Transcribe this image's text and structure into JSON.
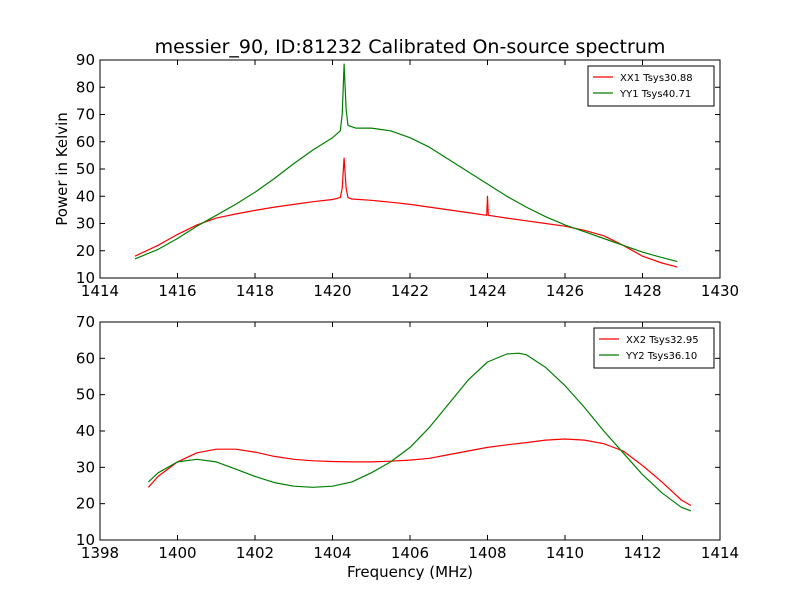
{
  "chart_data": [
    {
      "type": "line",
      "title": "messier_90, ID:81232 Calibrated On-source spectrum",
      "xlabel": "",
      "ylabel": "Power in Kelvin",
      "xlim": [
        1414,
        1430
      ],
      "ylim": [
        10,
        90
      ],
      "xticks": [
        1414,
        1416,
        1418,
        1420,
        1422,
        1424,
        1426,
        1428,
        1430
      ],
      "yticks": [
        10,
        20,
        30,
        40,
        50,
        60,
        70,
        80,
        90
      ],
      "legend_position": "top-right",
      "grid": false,
      "series": [
        {
          "name": "XX1 Tsys30.88",
          "color": "#ff0000",
          "x": [
            1414.9,
            1415.5,
            1416.0,
            1416.5,
            1417.0,
            1417.5,
            1418.0,
            1418.5,
            1419.0,
            1419.5,
            1420.0,
            1420.2,
            1420.25,
            1420.3,
            1420.35,
            1420.4,
            1420.5,
            1421.0,
            1421.5,
            1422.0,
            1422.5,
            1423.0,
            1423.5,
            1423.98,
            1424.0,
            1424.02,
            1424.5,
            1425.0,
            1425.5,
            1426.0,
            1426.5,
            1427.0,
            1427.5,
            1428.0,
            1428.5,
            1428.9
          ],
          "y": [
            18,
            22,
            26,
            29.5,
            32,
            33.5,
            34.8,
            36,
            37,
            38,
            38.8,
            39.5,
            43,
            54,
            43,
            39.5,
            39,
            38.5,
            37.8,
            37,
            36,
            35,
            34,
            33,
            40,
            33,
            32,
            31,
            30,
            29,
            27.5,
            25.5,
            22,
            18,
            15.5,
            14
          ]
        },
        {
          "name": "YY1 Tsys40.71",
          "color": "#008000",
          "x": [
            1414.9,
            1415.5,
            1416.0,
            1416.5,
            1417.0,
            1417.5,
            1418.0,
            1418.5,
            1419.0,
            1419.5,
            1420.0,
            1420.2,
            1420.25,
            1420.3,
            1420.35,
            1420.4,
            1420.6,
            1421.0,
            1421.5,
            1422.0,
            1422.5,
            1423.0,
            1423.5,
            1424.0,
            1424.5,
            1425.0,
            1425.5,
            1426.0,
            1426.5,
            1427.0,
            1427.5,
            1428.0,
            1428.5,
            1428.9
          ],
          "y": [
            17,
            20.5,
            24.5,
            29,
            33,
            37,
            41.5,
            46.5,
            52,
            57,
            61.5,
            64,
            70,
            88.5,
            72,
            66,
            65,
            65,
            64,
            61.5,
            58,
            53.5,
            49,
            44.5,
            40,
            36,
            32.5,
            29.5,
            27,
            24.5,
            22,
            19.5,
            17.5,
            16
          ]
        }
      ]
    },
    {
      "type": "line",
      "title": "",
      "xlabel": "Frequency (MHz)",
      "ylabel": "",
      "xlim": [
        1398,
        1414
      ],
      "ylim": [
        10,
        70
      ],
      "xticks": [
        1398,
        1400,
        1402,
        1404,
        1406,
        1408,
        1410,
        1412,
        1414
      ],
      "yticks": [
        10,
        20,
        30,
        40,
        50,
        60,
        70
      ],
      "legend_position": "top-right",
      "grid": false,
      "series": [
        {
          "name": "XX2 Tsys32.95",
          "color": "#ff0000",
          "x": [
            1399.25,
            1399.5,
            1400.0,
            1400.5,
            1401.0,
            1401.5,
            1402.0,
            1402.5,
            1403.0,
            1403.5,
            1404.0,
            1404.5,
            1405.0,
            1405.5,
            1406.0,
            1406.5,
            1407.0,
            1407.5,
            1408.0,
            1408.5,
            1409.0,
            1409.5,
            1410.0,
            1410.5,
            1411.0,
            1411.5,
            1412.0,
            1412.5,
            1413.0,
            1413.25
          ],
          "y": [
            24.5,
            27.5,
            31.5,
            34,
            35,
            35,
            34.2,
            33,
            32.2,
            31.8,
            31.6,
            31.5,
            31.5,
            31.7,
            32,
            32.5,
            33.5,
            34.5,
            35.5,
            36.2,
            36.8,
            37.5,
            37.8,
            37.5,
            36.5,
            34.5,
            30.5,
            26,
            21,
            19.5
          ]
        },
        {
          "name": "YY2 Tsys36.10",
          "color": "#008000",
          "x": [
            1399.25,
            1399.5,
            1400.0,
            1400.5,
            1401.0,
            1401.5,
            1402.0,
            1402.5,
            1403.0,
            1403.5,
            1404.0,
            1404.5,
            1405.0,
            1405.5,
            1406.0,
            1406.5,
            1407.0,
            1407.5,
            1408.0,
            1408.5,
            1408.8,
            1409.0,
            1409.5,
            1410.0,
            1410.5,
            1411.0,
            1411.5,
            1412.0,
            1412.5,
            1413.0,
            1413.25
          ],
          "y": [
            26,
            28.5,
            31.5,
            32.2,
            31.5,
            29.5,
            27.5,
            25.8,
            24.8,
            24.5,
            24.8,
            26,
            28.5,
            31.5,
            35.5,
            41,
            47.5,
            54,
            59,
            61.2,
            61.4,
            61,
            57.5,
            52.5,
            46.5,
            40,
            34,
            28,
            23,
            19,
            18
          ]
        }
      ]
    }
  ]
}
